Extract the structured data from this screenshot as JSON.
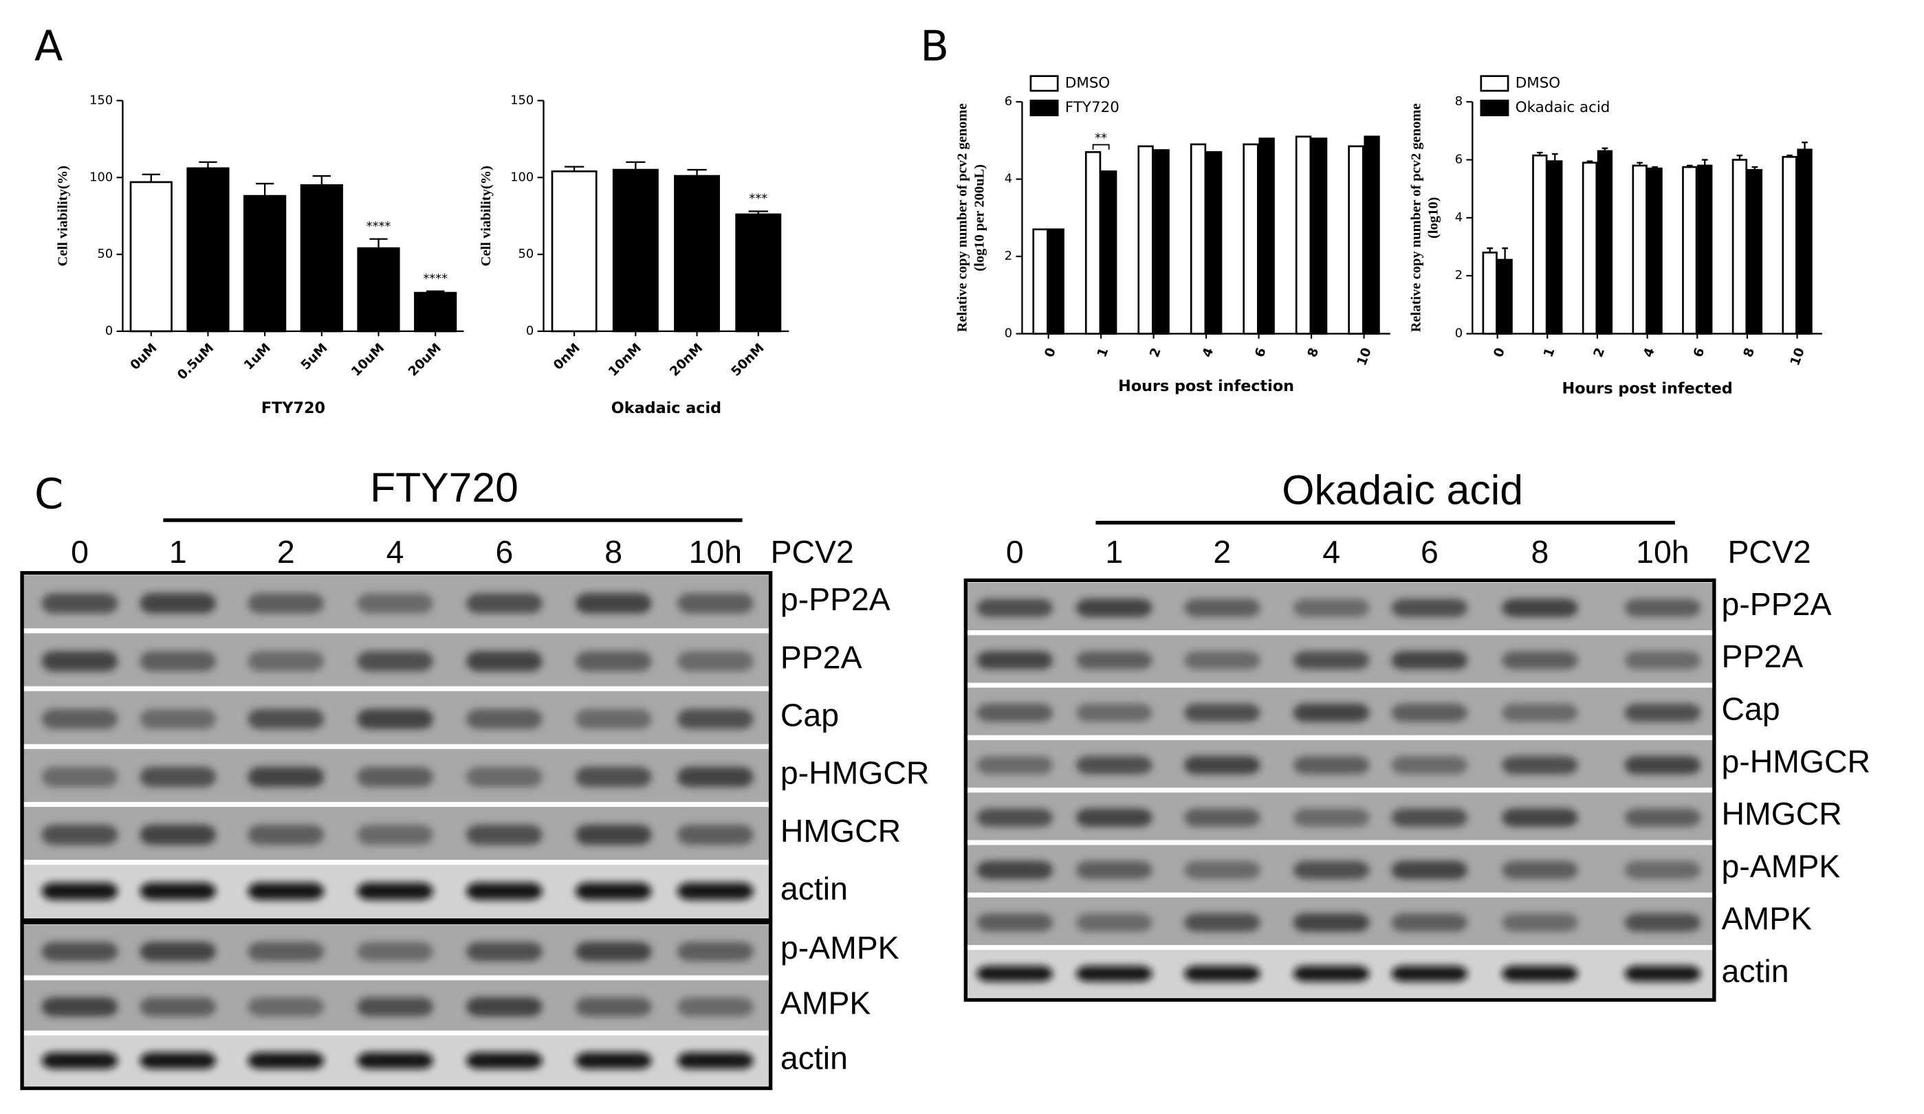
{
  "panel_labels": [
    "A",
    "B",
    "C"
  ],
  "chart_data": [
    {
      "type": "bar",
      "ylabel": [
        "Cell viability(%)"
      ],
      "xlabel": "FTY720",
      "categories": [
        "0uM",
        "0.5uM",
        "1uM",
        "5uM",
        "10uM",
        "20uM"
      ],
      "values": [
        97,
        106,
        88,
        95,
        54,
        25
      ],
      "errors": [
        5,
        4,
        8,
        6,
        6,
        1
      ],
      "colors": [
        "#ffffff",
        "#000000",
        "#000000",
        "#000000",
        "#000000",
        "#000000"
      ],
      "annotations": [
        null,
        null,
        null,
        null,
        "****",
        "****"
      ],
      "ylim": [
        0,
        150
      ],
      "yticks": [
        0,
        50,
        100,
        150
      ]
    },
    {
      "type": "bar",
      "ylabel": [
        "Cell viability(%)"
      ],
      "xlabel": "Okadaic acid",
      "categories": [
        "0nM",
        "10nM",
        "20nM",
        "50nM"
      ],
      "values": [
        104,
        105,
        101,
        76
      ],
      "errors": [
        3,
        5,
        4,
        2
      ],
      "colors": [
        "#ffffff",
        "#000000",
        "#000000",
        "#000000"
      ],
      "annotations": [
        null,
        null,
        null,
        "***"
      ],
      "ylim": [
        0,
        150
      ],
      "yticks": [
        0,
        50,
        100,
        150
      ]
    },
    {
      "type": "bar",
      "ylabel": [
        "Relative copy number of pcv2 genome",
        "(log10 per 200uL)"
      ],
      "xlabel": "Hours post infection",
      "categories": [
        "0",
        "1",
        "2",
        "4",
        "6",
        "8",
        "10"
      ],
      "series": [
        {
          "name": "DMSO",
          "color": "#ffffff",
          "values": [
            2.7,
            4.7,
            4.85,
            4.9,
            4.9,
            5.1,
            4.85
          ]
        },
        {
          "name": "FTY720",
          "color": "#000000",
          "values": [
            2.7,
            4.2,
            4.75,
            4.7,
            5.05,
            5.05,
            5.1
          ]
        }
      ],
      "annotations": [
        null,
        "**",
        null,
        null,
        null,
        null,
        null
      ],
      "ylim": [
        0,
        6
      ],
      "yticks": [
        0,
        2,
        4,
        6
      ]
    },
    {
      "type": "bar",
      "ylabel": [
        "Relative copy number of pcv2 genome",
        "(log10)"
      ],
      "xlabel": "Hours post infected",
      "categories": [
        "0",
        "1",
        "2",
        "4",
        "6",
        "8",
        "10"
      ],
      "series": [
        {
          "name": "DMSO",
          "color": "#ffffff",
          "values": [
            2.8,
            6.15,
            5.9,
            5.8,
            5.75,
            6.0,
            6.1
          ],
          "errors": [
            0.15,
            0.1,
            0.05,
            0.1,
            0.05,
            0.15,
            0.05
          ]
        },
        {
          "name": "Okadaic acid",
          "color": "#000000",
          "values": [
            2.55,
            5.95,
            6.3,
            5.7,
            5.8,
            5.65,
            6.35
          ],
          "errors": [
            0.4,
            0.25,
            0.1,
            0.05,
            0.2,
            0.1,
            0.25
          ]
        }
      ],
      "ylim": [
        0,
        8
      ],
      "yticks": [
        0,
        2,
        4,
        6,
        8
      ]
    }
  ],
  "blots": [
    {
      "title": "FTY720",
      "lanes": [
        "0",
        "1",
        "2",
        "4",
        "6",
        "8",
        "10h"
      ],
      "lane_label": "PCV2",
      "groups": [
        [
          "p-PP2A",
          "PP2A",
          "Cap",
          "p-HMGCR",
          "HMGCR",
          "actin"
        ],
        [
          "p-AMPK",
          "AMPK",
          "actin"
        ]
      ]
    },
    {
      "title": "Okadaic acid",
      "lanes": [
        "0",
        "1",
        "2",
        "4",
        "6",
        "8",
        "10h"
      ],
      "lane_label": "PCV2",
      "groups": [
        [
          "p-PP2A",
          "PP2A",
          "Cap",
          "p-HMGCR",
          "HMGCR",
          "p-AMPK",
          "AMPK",
          "actin"
        ]
      ]
    }
  ]
}
